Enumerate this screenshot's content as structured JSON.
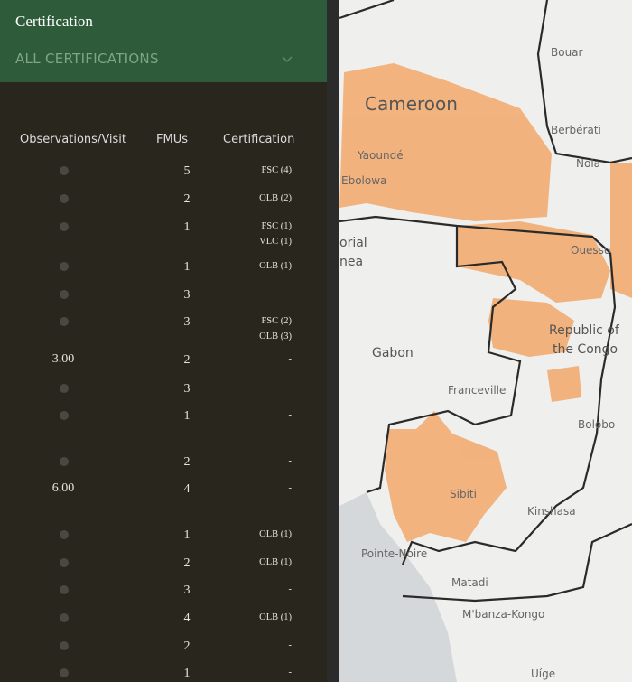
{
  "header": {
    "title": "Certification",
    "filter": "ALL CERTIFICATIONS"
  },
  "table": {
    "columns": [
      "Observations/Visit",
      "FMUs",
      "Certification"
    ],
    "rows": [
      {
        "observations": null,
        "fmus": 5,
        "certifications": [
          "FSC (4)"
        ]
      },
      {
        "observations": null,
        "fmus": 2,
        "certifications": [
          "OLB (2)"
        ]
      },
      {
        "observations": null,
        "fmus": 1,
        "certifications": [
          "FSC (1)",
          "VLC (1)"
        ]
      },
      {
        "observations": null,
        "fmus": 1,
        "certifications": [
          "OLB (1)"
        ]
      },
      {
        "observations": null,
        "fmus": 3,
        "certifications": [
          "-"
        ]
      },
      {
        "observations": null,
        "fmus": 3,
        "certifications": [
          "FSC (2)",
          "OLB (3)"
        ]
      },
      {
        "observations": "3.00",
        "fmus": 2,
        "certifications": [
          "-"
        ]
      },
      {
        "observations": null,
        "fmus": 3,
        "certifications": [
          "-"
        ]
      },
      {
        "observations": null,
        "fmus": 1,
        "certifications": [
          "-"
        ]
      },
      {
        "observations": null,
        "fmus": 2,
        "certifications": [
          "-"
        ]
      },
      {
        "observations": "6.00",
        "fmus": 4,
        "certifications": [
          "-"
        ]
      },
      {
        "observations": null,
        "fmus": 1,
        "certifications": [
          "OLB (1)"
        ]
      },
      {
        "observations": null,
        "fmus": 2,
        "certifications": [
          "OLB (1)"
        ]
      },
      {
        "observations": null,
        "fmus": 3,
        "certifications": [
          "-"
        ]
      },
      {
        "observations": null,
        "fmus": 4,
        "certifications": [
          "OLB (1)"
        ]
      },
      {
        "observations": null,
        "fmus": 2,
        "certifications": [
          "-"
        ]
      },
      {
        "observations": null,
        "fmus": 1,
        "certifications": [
          "-"
        ]
      }
    ]
  },
  "map": {
    "labels": [
      "Cameroon",
      "Yaoundé",
      "Ebolowa",
      "Bouar",
      "Berbérati",
      "Nola",
      "Ouesso",
      "Republic of",
      "the Congo",
      "Gabon",
      "Franceville",
      "Bolobo",
      "Sibiti",
      "Kinshasa",
      "Pointe-Noire",
      "Matadi",
      "M'banza-Kongo",
      "Uíge",
      "orial",
      "nea"
    ]
  }
}
